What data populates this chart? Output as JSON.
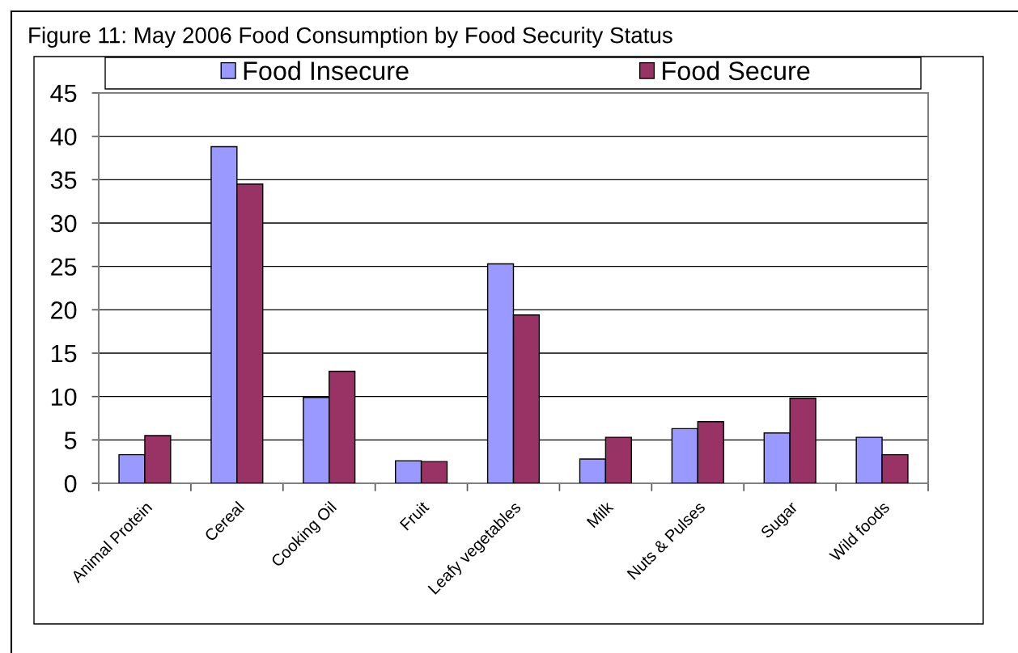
{
  "chart_data": {
    "type": "bar",
    "title": "Figure 11: May 2006 Food Consumption by Food Security Status",
    "categories": [
      "Animal Protein",
      "Cereal",
      "Cooking Oil",
      "Fruit",
      "Leafy vegetables",
      "Milk",
      "Nuts & Pulses",
      "Sugar",
      "Wild foods"
    ],
    "series": [
      {
        "name": "Food Insecure",
        "color": "#9999ff",
        "values": [
          3.3,
          38.8,
          9.9,
          2.6,
          25.3,
          2.8,
          6.3,
          5.8,
          5.3
        ]
      },
      {
        "name": "Food Secure",
        "color": "#993366",
        "values": [
          5.5,
          34.5,
          12.9,
          2.5,
          19.4,
          5.3,
          7.1,
          9.8,
          3.3
        ]
      }
    ],
    "ylim": [
      0,
      45
    ],
    "yticks": [
      0,
      5,
      10,
      15,
      20,
      25,
      30,
      35,
      40,
      45
    ],
    "grid": "y",
    "legend": "top"
  }
}
